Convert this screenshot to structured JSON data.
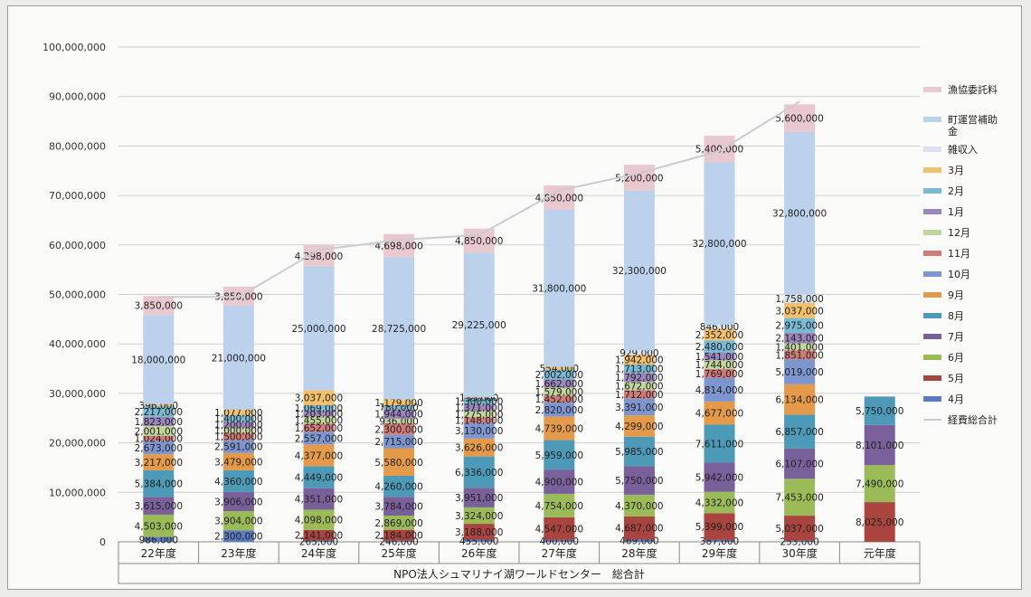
{
  "chart_data": {
    "type": "bar",
    "stacked": true,
    "title": "",
    "xlabel": "NPO法人シュマリナイ湖ワールドセンター　総合計",
    "ylabel": "",
    "ylim": [
      0,
      100000000
    ],
    "yticks": [
      "0",
      "10,000,000",
      "20,000,000",
      "30,000,000",
      "40,000,000",
      "50,000,000",
      "60,000,000",
      "70,000,000",
      "80,000,000",
      "90,000,000",
      "100,000,000"
    ],
    "ytick_values": [
      0,
      10000000,
      20000000,
      30000000,
      40000000,
      50000000,
      60000000,
      70000000,
      80000000,
      90000000,
      100000000
    ],
    "grid": true,
    "legend_position": "right",
    "categories": [
      "22年度",
      "23年度",
      "24年度",
      "25年度",
      "26年度",
      "27年度",
      "28年度",
      "29年度",
      "30年度",
      "元年度"
    ],
    "series": [
      {
        "name": "4月",
        "color": "#5b7bc0",
        "values": [
          986000,
          2300000,
          265000,
          246000,
          455000,
          400000,
          469000,
          387000,
          253000,
          null
        ],
        "labels": [
          "986,000",
          "2,300,000",
          "265,000",
          "246,000",
          "455,000",
          "400,000",
          "469,000",
          "387,000",
          "253,000",
          ""
        ]
      },
      {
        "name": "5月",
        "color": "#a9443f",
        "values": [
          null,
          null,
          2141000,
          2184000,
          3188000,
          4547000,
          4687000,
          5399000,
          5037000,
          8025000
        ],
        "labels": [
          "",
          "",
          "2,141,000",
          "2,184,000",
          "3,188,000",
          "4,547,000",
          "4,687,000",
          "5,399,000",
          "5,037,000",
          "8,025,000"
        ]
      },
      {
        "name": "6月",
        "color": "#9bbb59",
        "values": [
          4503000,
          3904000,
          4098000,
          2869000,
          3324000,
          4754000,
          4370000,
          4332000,
          7453000,
          7490000
        ],
        "labels": [
          "4,503,000",
          "3,904,000",
          "4,098,000",
          "2,869,000",
          "3,324,000",
          "4,754,000",
          "4,370,000",
          "4,332,000",
          "7,453,000",
          "7,490,000"
        ]
      },
      {
        "name": "7月",
        "color": "#7a609a",
        "values": [
          3615000,
          3906000,
          4351000,
          3784000,
          3951000,
          4900000,
          5750000,
          5942000,
          6107000,
          8101000
        ],
        "labels": [
          "3,615,000",
          "3,906,000",
          "4,351,000",
          "3,784,000",
          "3,951,000",
          "4,900,000",
          "5,750,000",
          "5,942,000",
          "6,107,000",
          "8,101,000"
        ]
      },
      {
        "name": "8月",
        "color": "#4c9ab8",
        "values": [
          5384000,
          4360000,
          4449000,
          4260000,
          6336000,
          5959000,
          5985000,
          7611000,
          6857000,
          5750000
        ],
        "labels": [
          "5,384,000",
          "4,360,000",
          "4,449,000",
          "4,260,000",
          "6,336,000",
          "5,959,000",
          "5,985,000",
          "7,611,000",
          "6,857,000",
          "5,750,000"
        ]
      },
      {
        "name": "9月",
        "color": "#e59a4a",
        "values": [
          3217000,
          3479000,
          4377000,
          5580000,
          3626000,
          4739000,
          4299000,
          4677000,
          6134000,
          null
        ],
        "labels": [
          "3,217,000",
          "3,479,000",
          "4,377,000",
          "5,580,000",
          "3,626,000",
          "4,739,000",
          "4,299,000",
          "4,677,000",
          "6,134,000",
          ""
        ]
      },
      {
        "name": "10月",
        "color": "#7e96cf",
        "values": [
          2673000,
          2591000,
          2557000,
          2715000,
          3130000,
          2820000,
          3391000,
          4814000,
          5019000,
          null
        ],
        "labels": [
          "2,673,000",
          "2,591,000",
          "2,557,000",
          "2,715,000",
          "3,130,000",
          "2,820,000",
          "3,391,000",
          "4,814,000",
          "5,019,000",
          ""
        ]
      },
      {
        "name": "11月",
        "color": "#cf7b78",
        "values": [
          1024000,
          1500000,
          1652000,
          2300000,
          1148000,
          1452000,
          1712000,
          1769000,
          1851000,
          null
        ],
        "labels": [
          "1,024,000",
          "1,500,000",
          "1,652,000",
          "2,300,000",
          "1,148,000",
          "1,452,000",
          "1,712,000",
          "1,769,000",
          "1,851,000",
          ""
        ]
      },
      {
        "name": "12月",
        "color": "#c2d69b",
        "values": [
          2001000,
          1000000,
          1455000,
          936000,
          1275000,
          1579000,
          1672000,
          1744000,
          1401000,
          null
        ],
        "labels": [
          "2,001,000",
          "1,000,000",
          "1,455,000",
          "936,000",
          "1,275,000",
          "1,579,000",
          "1,672,000",
          "1,744,000",
          "1,401,000",
          ""
        ]
      },
      {
        "name": "1月",
        "color": "#9d86bd",
        "values": [
          1823000,
          1200000,
          1203000,
          1944000,
          1371000,
          1662000,
          1792000,
          1541000,
          2143000,
          null
        ],
        "labels": [
          "1,823,000",
          "1,200,000",
          "1,203,000",
          "1,944,000",
          "1,371,000",
          "1,662,000",
          "1,792,000",
          "1,541,000",
          "2,143,000",
          ""
        ]
      },
      {
        "name": "2月",
        "color": "#79b9d1",
        "values": [
          2217000,
          1400000,
          1069000,
          780000,
          1300000,
          2002000,
          1713000,
          2480000,
          2975000,
          null
        ],
        "labels": [
          "2,217,000",
          "1,400,000",
          "1,069,000",
          "780,000",
          "1,300,000",
          "2,002,000",
          "1,713,000",
          "2,480,000",
          "2,975,000",
          ""
        ]
      },
      {
        "name": "3月",
        "color": "#f3c06e",
        "values": [
          396000,
          1077000,
          3037000,
          1179000,
          135000,
          554000,
          1942000,
          2352000,
          3037000,
          null
        ],
        "labels": [
          "396,000",
          "1,077,000",
          "3,037,000",
          "1,179,000",
          "135,000",
          "554,000",
          "1,942,000",
          "2,352,000",
          "3,037,000",
          ""
        ]
      },
      {
        "name": "雑収入",
        "color": "#d9e2ee",
        "values": [
          null,
          null,
          null,
          null,
          null,
          null,
          929000,
          846000,
          1758000,
          null
        ],
        "labels": [
          "",
          "",
          "",
          "",
          "",
          "",
          "929,000",
          "846,000",
          "1,758,000",
          ""
        ]
      },
      {
        "name": "町運営補助金",
        "color": "#bcd2ec",
        "values": [
          18000000,
          21000000,
          25000000,
          28725000,
          29225000,
          31800000,
          32300000,
          32800000,
          32800000,
          null
        ],
        "labels": [
          "18,000,000",
          "21,000,000",
          "25,000,000",
          "28,725,000",
          "29,225,000",
          "31,800,000",
          "32,300,000",
          "32,800,000",
          "32,800,000",
          ""
        ]
      },
      {
        "name": "漁協委託料",
        "color": "#e9c9cf",
        "values": [
          3850000,
          3850000,
          4298000,
          4698000,
          4850000,
          4850000,
          5200000,
          5400000,
          5600000,
          null
        ],
        "labels": [
          "3,850,000",
          "3,850,000",
          "4,298,000",
          "4,698,000",
          "4,850,000",
          "4,850,000",
          "5,200,000",
          "5,400,000",
          "5,600,000",
          ""
        ]
      }
    ],
    "line": {
      "name": "経費総合計",
      "color": "#c9ccd2",
      "values": [
        49500000,
        49500000,
        59000000,
        61000000,
        62000000,
        71000000,
        74500000,
        79000000,
        89000000,
        null
      ]
    },
    "legend_order": [
      "漁協委託料",
      "町運営補助金",
      "雑収入",
      "3月",
      "2月",
      "1月",
      "12月",
      "11月",
      "10月",
      "9月",
      "8月",
      "7月",
      "6月",
      "5月",
      "4月",
      "経費総合計"
    ]
  }
}
